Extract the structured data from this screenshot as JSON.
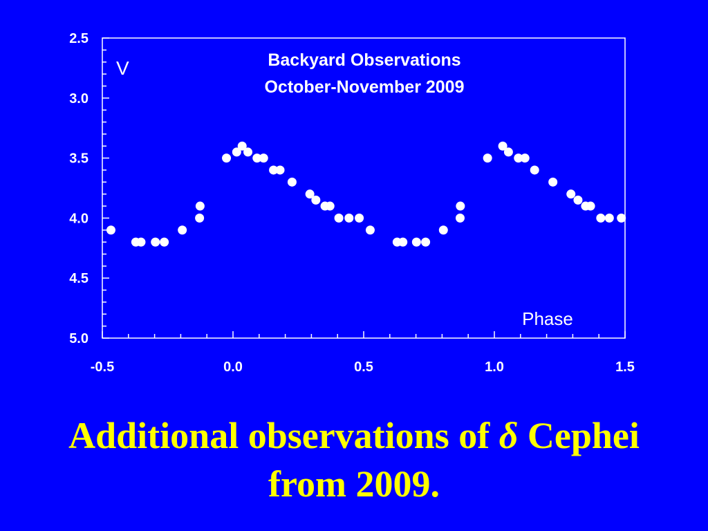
{
  "chart_data": {
    "type": "scatter",
    "title_lines": [
      "Backyard Observations",
      "October-November 2009"
    ],
    "ylabel": "V",
    "xlabel": "Phase",
    "xlim": [
      -0.5,
      1.5
    ],
    "ylim": [
      2.5,
      5.0
    ],
    "y_inverted": true,
    "x_ticks": [
      "-0.5",
      "0.0",
      "0.5",
      "1.0",
      "1.5"
    ],
    "y_ticks": [
      "2.5",
      "3.0",
      "3.5",
      "4.0",
      "4.5",
      "5.0"
    ],
    "grid": false,
    "colors": {
      "background": "#0000ff",
      "axes": "#ffffff",
      "points": "#ffffff",
      "caption": "#ffff00"
    },
    "series": [
      {
        "points": [
          [
            -0.467,
            4.1
          ],
          [
            -0.372,
            4.2
          ],
          [
            -0.352,
            4.2
          ],
          [
            -0.297,
            4.2
          ],
          [
            -0.263,
            4.2
          ],
          [
            -0.194,
            4.1
          ],
          [
            -0.128,
            4.0
          ],
          [
            -0.126,
            3.9
          ],
          [
            -0.025,
            3.5
          ],
          [
            0.014,
            3.45
          ],
          [
            0.035,
            3.4
          ],
          [
            0.057,
            3.45
          ],
          [
            0.092,
            3.5
          ],
          [
            0.117,
            3.5
          ],
          [
            0.155,
            3.6
          ],
          [
            0.18,
            3.6
          ],
          [
            0.226,
            3.7
          ],
          [
            0.294,
            3.8
          ],
          [
            0.317,
            3.85
          ],
          [
            0.352,
            3.9
          ],
          [
            0.371,
            3.9
          ],
          [
            0.405,
            4.0
          ],
          [
            0.444,
            4.0
          ],
          [
            0.483,
            4.0
          ],
          [
            0.525,
            4.1
          ],
          [
            0.628,
            4.2
          ],
          [
            0.65,
            4.2
          ],
          [
            0.702,
            4.2
          ],
          [
            0.737,
            4.2
          ],
          [
            0.805,
            4.1
          ],
          [
            0.869,
            4.0
          ],
          [
            0.87,
            3.9
          ],
          [
            0.974,
            3.5
          ],
          [
            1.032,
            3.4
          ],
          [
            1.054,
            3.45
          ],
          [
            1.092,
            3.5
          ],
          [
            1.117,
            3.5
          ],
          [
            1.154,
            3.6
          ],
          [
            1.224,
            3.7
          ],
          [
            1.293,
            3.8
          ],
          [
            1.32,
            3.85
          ],
          [
            1.349,
            3.9
          ],
          [
            1.368,
            3.9
          ],
          [
            1.407,
            4.0
          ],
          [
            1.44,
            4.0
          ],
          [
            1.486,
            4.0
          ]
        ]
      }
    ]
  },
  "caption": {
    "line1_prefix": "Additional observations of ",
    "delta": "δ",
    "line1_suffix": " Cephei",
    "line2": "from 2009."
  }
}
